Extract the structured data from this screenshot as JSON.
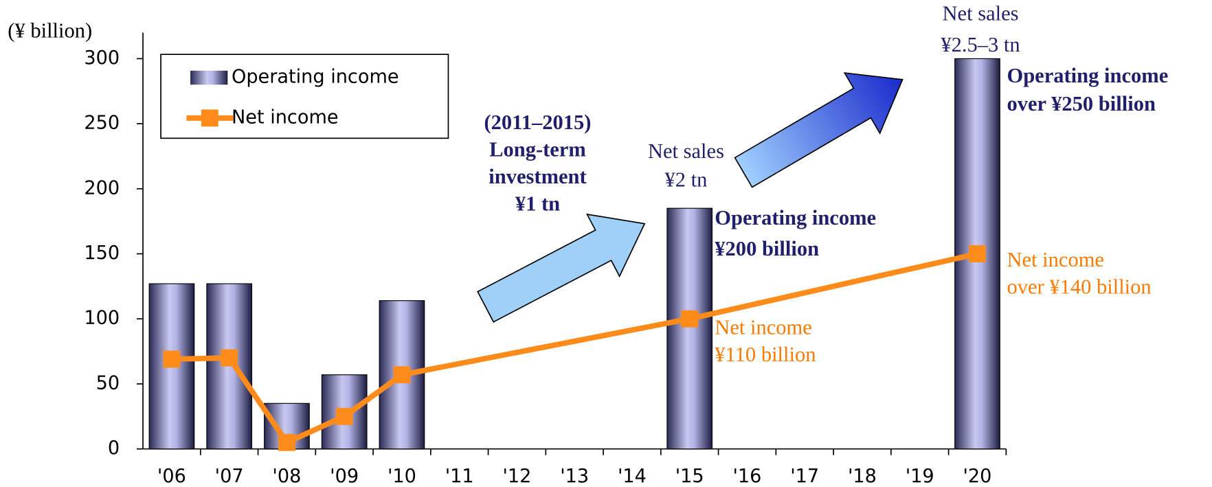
{
  "chart_data": {
    "type": "bar",
    "y_label": "(¥ billion)",
    "categories": [
      "'06",
      "'07",
      "'08",
      "'09",
      "'10",
      "'11",
      "'12",
      "'13",
      "'14",
      "'15",
      "'16",
      "'17",
      "'18",
      "'19",
      "'20"
    ],
    "ylim": [
      0,
      320
    ],
    "yticks": [
      0,
      50,
      100,
      150,
      200,
      250,
      300
    ],
    "series": [
      {
        "name": "Operating income",
        "type": "bar",
        "color": "#b3b3e6",
        "x": [
          "'06",
          "'07",
          "'08",
          "'09",
          "'10",
          "'15",
          "'20"
        ],
        "values": [
          127,
          127,
          35,
          57,
          114,
          185,
          300
        ]
      },
      {
        "name": "Net income",
        "type": "line",
        "color": "#ff8c1a",
        "x": [
          "'06",
          "'07",
          "'08",
          "'09",
          "'10",
          "'15",
          "'20"
        ],
        "values": [
          69,
          70,
          5,
          25,
          57,
          100,
          150
        ]
      }
    ],
    "legend": "upper left",
    "annotations": [
      {
        "lines": [
          "(2011–2015)",
          "Long-term",
          "investment",
          "¥1 tn"
        ],
        "color": "#1f1f6b",
        "bold": true
      },
      {
        "lines": [
          "Net sales",
          "¥2 tn"
        ],
        "color": "#1f1f6b",
        "bold": false
      },
      {
        "lines": [
          "Operating income",
          "¥200 billion"
        ],
        "color": "#1f1f6b",
        "bold": true
      },
      {
        "lines": [
          "Net income",
          "¥110 billion"
        ],
        "color": "#ff7a00",
        "bold": false
      },
      {
        "lines": [
          "Net sales",
          "¥2.5–3 tn"
        ],
        "color": "#1f1f6b",
        "bold": false
      },
      {
        "lines": [
          "Operating income",
          "over ¥250 billion"
        ],
        "color": "#1f1f6b",
        "bold": true
      },
      {
        "lines": [
          "Net income",
          "over ¥140 billion"
        ],
        "color": "#ff7a00",
        "bold": false
      }
    ]
  }
}
